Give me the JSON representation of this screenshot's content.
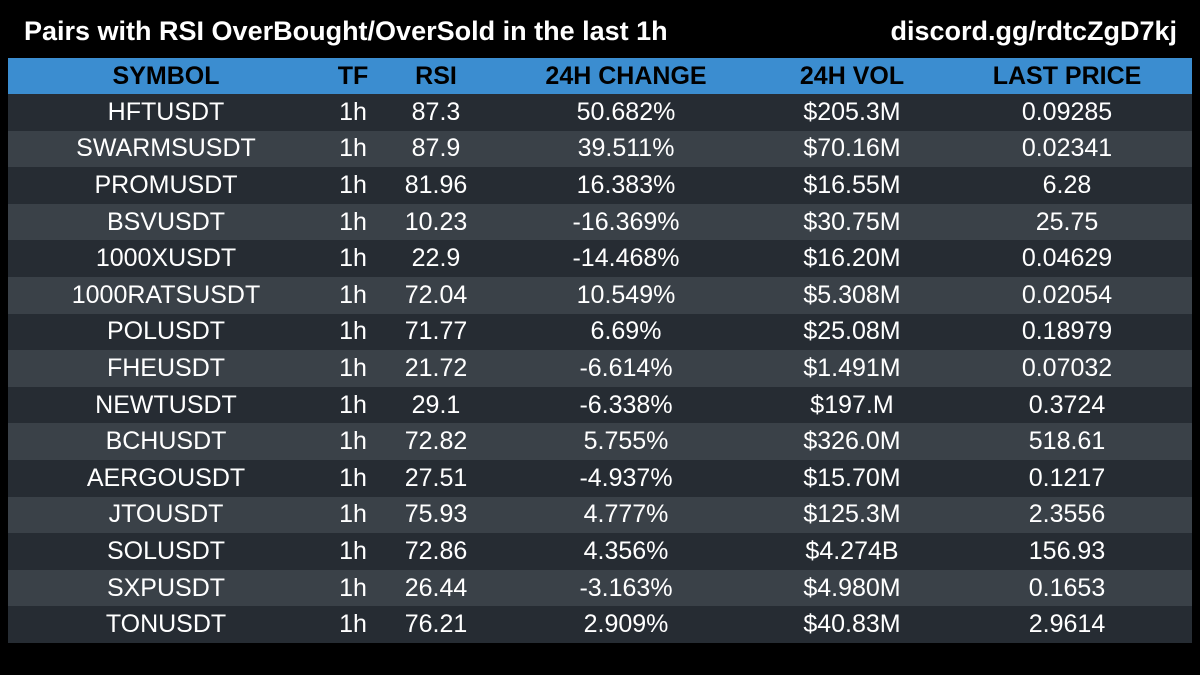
{
  "header": {
    "title": "Pairs with RSI OverBought/OverSold in the last 1h",
    "link": "discord.gg/rdtcZgD7kj"
  },
  "colors": {
    "background": "#000000",
    "header_row": "#3b8dd0",
    "row_dark": "#262c33",
    "row_light": "#3a4148",
    "text": "#ffffff"
  },
  "table": {
    "columns": [
      "SYMBOL",
      "TF",
      "RSI",
      "24H CHANGE",
      "24H VOL",
      "LAST PRICE"
    ],
    "rows": [
      [
        "HFTUSDT",
        "1h",
        "87.3",
        "50.682%",
        "$205.3M",
        "0.09285"
      ],
      [
        "SWARMSUSDT",
        "1h",
        "87.9",
        "39.511%",
        "$70.16M",
        "0.02341"
      ],
      [
        "PROMUSDT",
        "1h",
        "81.96",
        "16.383%",
        "$16.55M",
        "6.28"
      ],
      [
        "BSVUSDT",
        "1h",
        "10.23",
        "-16.369%",
        "$30.75M",
        "25.75"
      ],
      [
        "1000XUSDT",
        "1h",
        "22.9",
        "-14.468%",
        "$16.20M",
        "0.04629"
      ],
      [
        "1000RATSUSDT",
        "1h",
        "72.04",
        "10.549%",
        "$5.308M",
        "0.02054"
      ],
      [
        "POLUSDT",
        "1h",
        "71.77",
        "6.69%",
        "$25.08M",
        "0.18979"
      ],
      [
        "FHEUSDT",
        "1h",
        "21.72",
        "-6.614%",
        "$1.491M",
        "0.07032"
      ],
      [
        "NEWTUSDT",
        "1h",
        "29.1",
        "-6.338%",
        "$197.M",
        "0.3724"
      ],
      [
        "BCHUSDT",
        "1h",
        "72.82",
        "5.755%",
        "$326.0M",
        "518.61"
      ],
      [
        "AERGOUSDT",
        "1h",
        "27.51",
        "-4.937%",
        "$15.70M",
        "0.1217"
      ],
      [
        "JTOUSDT",
        "1h",
        "75.93",
        "4.777%",
        "$125.3M",
        "2.3556"
      ],
      [
        "SOLUSDT",
        "1h",
        "72.86",
        "4.356%",
        "$4.274B",
        "156.93"
      ],
      [
        "SXPUSDT",
        "1h",
        "26.44",
        "-3.163%",
        "$4.980M",
        "0.1653"
      ],
      [
        "TONUSDT",
        "1h",
        "76.21",
        "2.909%",
        "$40.83M",
        "2.9614"
      ]
    ]
  }
}
